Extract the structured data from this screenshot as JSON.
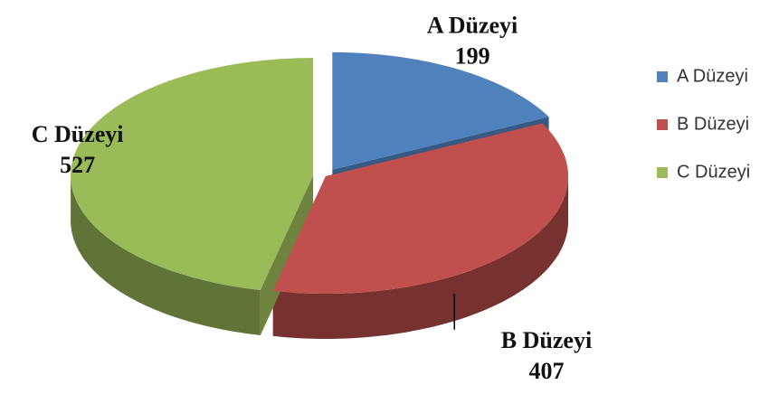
{
  "chart_data": {
    "type": "pie3d",
    "categories": [
      "A Düzeyi",
      "B Düzeyi",
      "C Düzeyi"
    ],
    "values": [
      199,
      407,
      527
    ],
    "colors": [
      "#4f81bd",
      "#c0504d",
      "#9bbb59"
    ],
    "legend": "right"
  }
}
